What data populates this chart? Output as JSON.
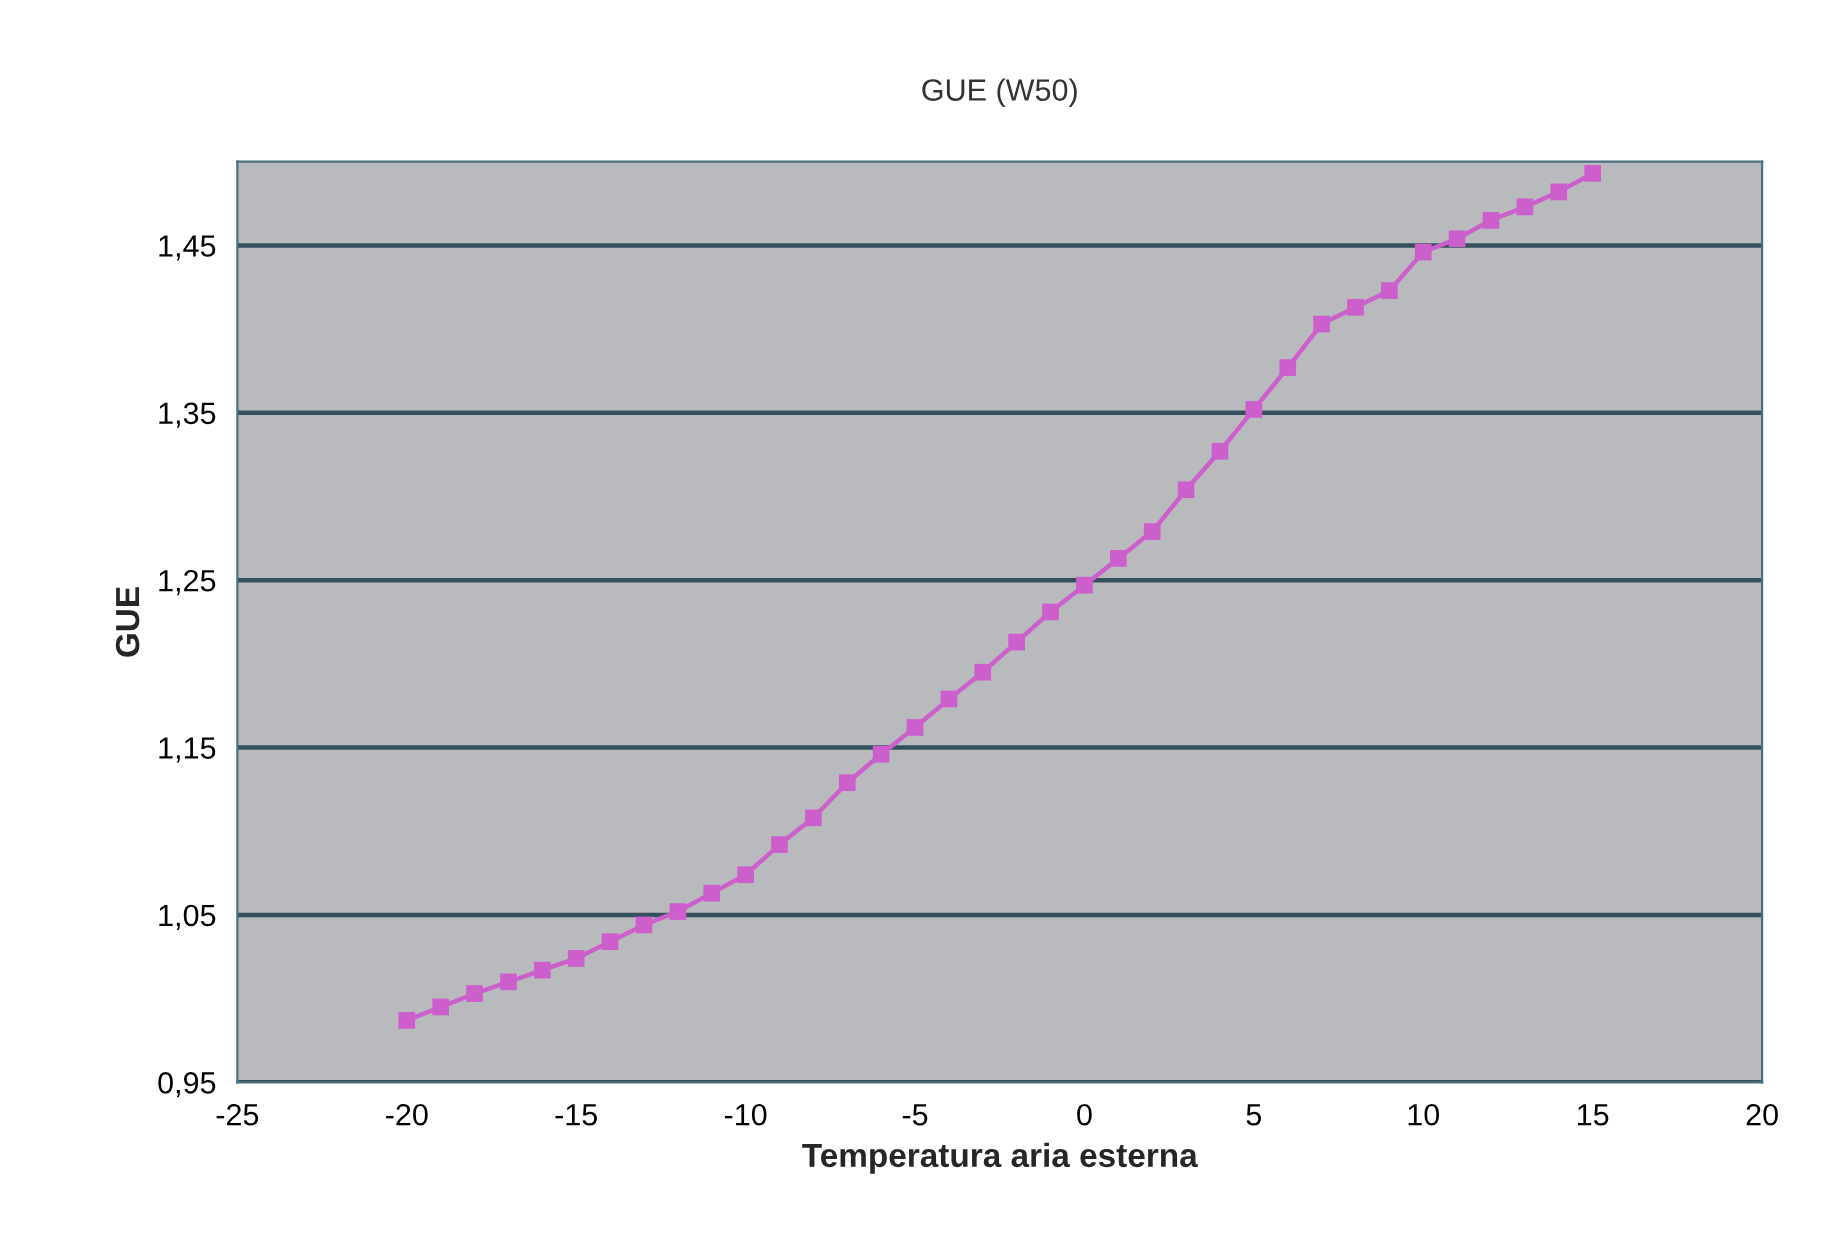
{
  "chart_data": {
    "type": "line",
    "title": "GUE (W50)",
    "xlabel": "Temperatura aria esterna",
    "ylabel": "GUE",
    "series": [
      {
        "color": "#cc5fcc",
        "x": [
          -20,
          -19,
          -18,
          -17,
          -16,
          -15,
          -14,
          -13,
          -12,
          -11,
          -10,
          -9,
          -8,
          -7,
          -6,
          -5,
          -4,
          -3,
          -2,
          -1,
          0,
          1,
          2,
          3,
          4,
          5,
          6,
          7,
          8,
          9,
          10,
          11,
          12,
          13,
          14,
          15
        ],
        "values": [
          0.987,
          0.995,
          1.003,
          1.01,
          1.017,
          1.024,
          1.034,
          1.044,
          1.052,
          1.063,
          1.074,
          1.092,
          1.108,
          1.129,
          1.146,
          1.162,
          1.179,
          1.195,
          1.213,
          1.231,
          1.247,
          1.263,
          1.279,
          1.304,
          1.327,
          1.352,
          1.377,
          1.403,
          1.413,
          1.423,
          1.446,
          1.454,
          1.465,
          1.473,
          1.482,
          1.493
        ]
      }
    ],
    "xlim": [
      -25,
      20
    ],
    "xticks": [
      -25,
      -20,
      -15,
      -10,
      -5,
      0,
      5,
      10,
      15,
      20
    ],
    "ylim": [
      0.95,
      1.5
    ],
    "yticks": [
      {
        "value": 0.95,
        "label": "0,95"
      },
      {
        "value": 1.05,
        "label": "1,05"
      },
      {
        "value": 1.15,
        "label": "1,15"
      },
      {
        "value": 1.25,
        "label": "1,25"
      },
      {
        "value": 1.35,
        "label": "1,35"
      },
      {
        "value": 1.45,
        "label": "1,45"
      }
    ],
    "grid": "y",
    "marker": "square",
    "line_style": "solid"
  }
}
